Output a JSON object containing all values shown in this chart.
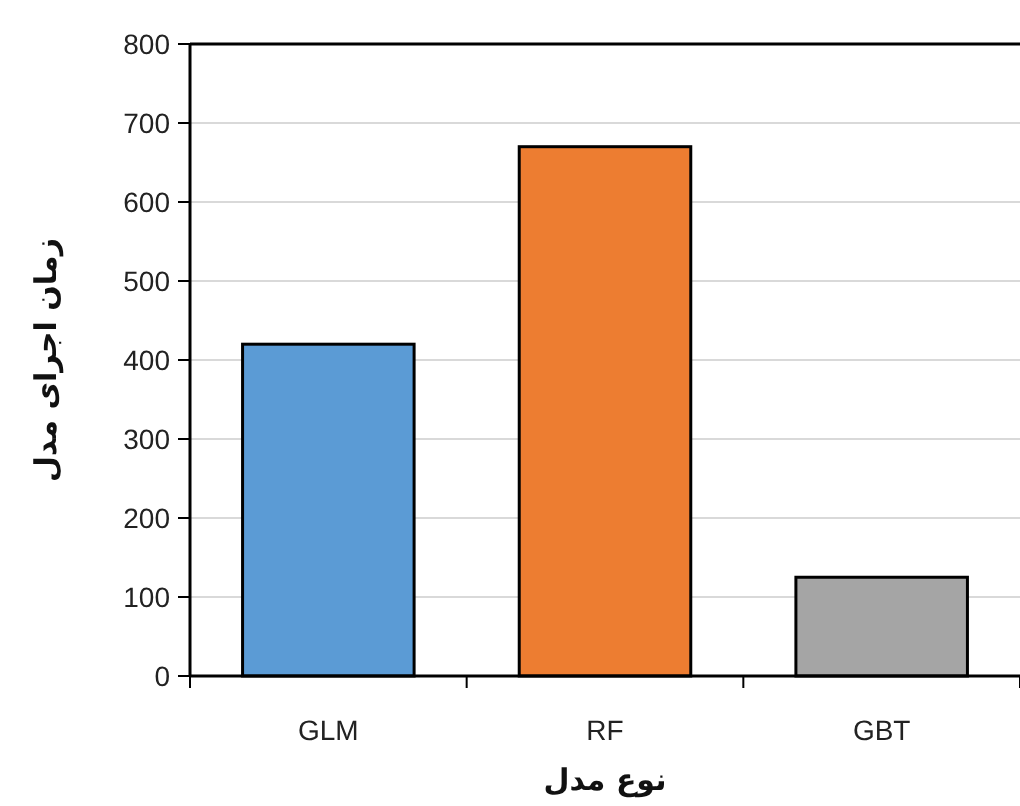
{
  "chart_data": {
    "type": "bar",
    "xlabel": "نوع مدل",
    "ylabel": "زمان اجرای مدل",
    "categories": [
      "GLM",
      "RF",
      "GBT"
    ],
    "values": [
      420,
      670,
      125
    ],
    "colors": [
      "#5b9bd5",
      "#ed7d31",
      "#a5a5a5"
    ],
    "ylim": [
      0,
      800
    ],
    "yticks": [
      0,
      100,
      200,
      300,
      400,
      500,
      600,
      700,
      800
    ],
    "grid": "y"
  }
}
